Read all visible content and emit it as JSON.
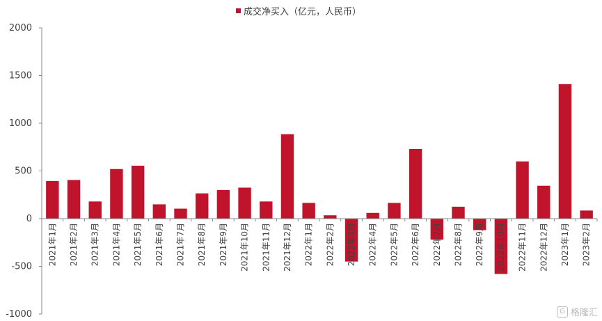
{
  "chart_data": {
    "type": "bar",
    "legend": "成交净买入（亿元，人民币）",
    "legend_position": "top-center",
    "bar_color": "#c0142c",
    "ylim": [
      -1000,
      2000
    ],
    "yticks": [
      -1000,
      -500,
      0,
      500,
      1000,
      1500,
      2000
    ],
    "grid": false,
    "categories": [
      "2021年1月",
      "2021年2月",
      "2021年3月",
      "2021年4月",
      "2021年5月",
      "2021年6月",
      "2021年7月",
      "2021年8月",
      "2021年9月",
      "2021年10月",
      "2021年11月",
      "2021年12月",
      "2022年1月",
      "2022年2月",
      "2022年3月",
      "2022年4月",
      "2022年5月",
      "2022年6月",
      "2022年7月",
      "2022年8月",
      "2022年9月",
      "2022年10月",
      "2022年11月",
      "2022年12月",
      "2023年1月",
      "2023年2月"
    ],
    "values": [
      395,
      405,
      180,
      520,
      555,
      150,
      105,
      265,
      300,
      325,
      180,
      885,
      165,
      35,
      -450,
      60,
      165,
      730,
      -220,
      125,
      -120,
      -580,
      600,
      345,
      1410,
      85
    ]
  },
  "watermark": {
    "text": "格隆汇",
    "logo": "G"
  }
}
